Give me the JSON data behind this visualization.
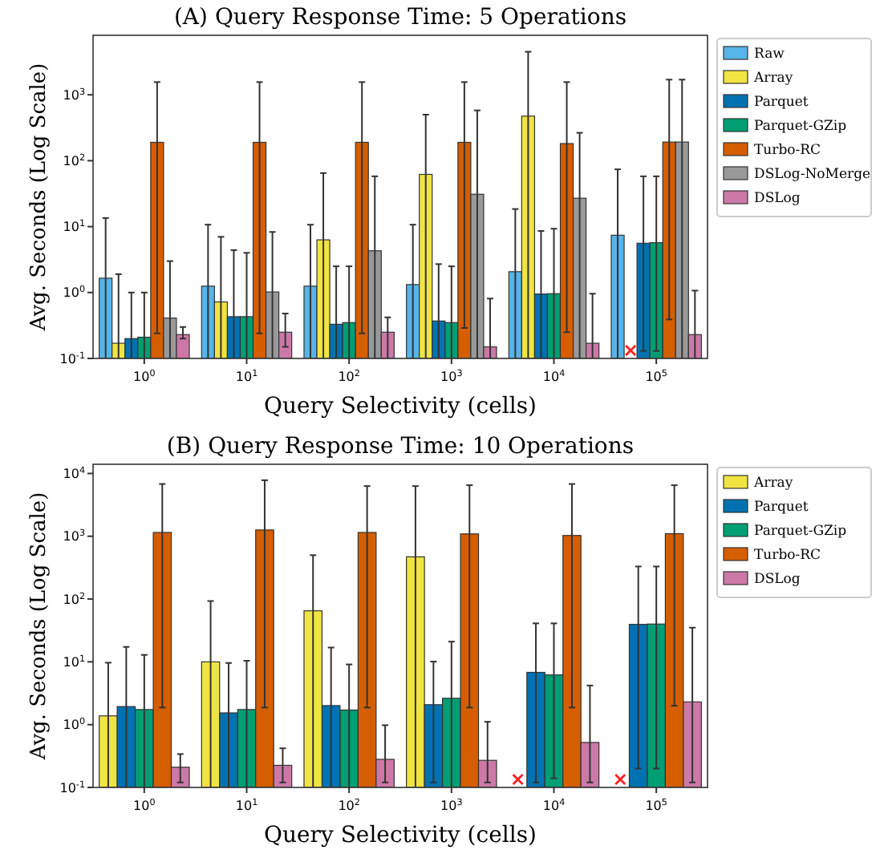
{
  "chart_data": [
    {
      "type": "bar",
      "title": "(A) Query Response Time: 5 Operations",
      "xlabel": "Query Selectivity (cells)",
      "ylabel": "Avg. Seconds (Log Scale)",
      "log": true,
      "legend": "right",
      "categories": [
        "10$^{0}$",
        "10$^{1}$",
        "10$^{2}$",
        "10$^{3}$",
        "10$^{4}$",
        "10$^{5}$"
      ],
      "ylim": [
        0.1,
        8000
      ],
      "yticks": [
        {
          "value": 0.1,
          "label": "10$^{-1}$"
        },
        {
          "value": 1,
          "label": "10$^{0}$"
        },
        {
          "value": 10,
          "label": "10$^{1}$"
        },
        {
          "value": 100,
          "label": "10$^{2}$"
        },
        {
          "value": 1000,
          "label": "10$^{3}$"
        }
      ],
      "series": [
        {
          "name": "Raw",
          "color": "#56b4e9",
          "values": [
            1.65,
            1.25,
            1.25,
            1.32,
            2.07,
            7.4
          ],
          "errors": [
            [
              0.1,
              13.5
            ],
            [
              0.1,
              10.7
            ],
            [
              0.1,
              10.7
            ],
            [
              0.1,
              10.7
            ],
            [
              0.1,
              18.5
            ],
            [
              0.1,
              74
            ]
          ]
        },
        {
          "name": "Array",
          "color": "#f0e442",
          "values": [
            0.17,
            0.72,
            6.3,
            62,
            475,
            null
          ],
          "errors": [
            [
              0.1,
              1.9
            ],
            [
              0.1,
              7
            ],
            [
              0.1,
              65
            ],
            [
              0.1,
              500
            ],
            [
              0.1,
              4500
            ],
            null
          ]
        },
        {
          "name": "Parquet",
          "color": "#0072b2",
          "values": [
            0.2,
            0.43,
            0.33,
            0.37,
            0.95,
            5.6
          ],
          "errors": [
            [
              0.1,
              1.0
            ],
            [
              0.1,
              4.4
            ],
            [
              0.1,
              2.5
            ],
            [
              0.1,
              2.7
            ],
            [
              0.1,
              8.6
            ],
            [
              0.13,
              58
            ]
          ]
        },
        {
          "name": "Parquet-GZip",
          "color": "#009e73",
          "values": [
            0.21,
            0.43,
            0.35,
            0.35,
            0.96,
            5.7
          ],
          "errors": [
            [
              0.1,
              1.0
            ],
            [
              0.1,
              4.0
            ],
            [
              0.1,
              2.5
            ],
            [
              0.1,
              2.5
            ],
            [
              0.1,
              9.3
            ],
            [
              0.13,
              58
            ]
          ]
        },
        {
          "name": "Turbo-RC",
          "color": "#d55e00",
          "values": [
            190,
            190,
            190,
            190,
            182,
            192
          ],
          "errors": [
            [
              0.24,
              1560
            ],
            [
              0.24,
              1560
            ],
            [
              0.24,
              1560
            ],
            [
              0.29,
              1560
            ],
            [
              0.25,
              1560
            ],
            [
              0.39,
              1700
            ]
          ]
        },
        {
          "name": "DSLog-NoMerge",
          "color": "#999999",
          "values": [
            0.41,
            1.02,
            4.3,
            31,
            27,
            192
          ],
          "errors": [
            [
              0.1,
              3.0
            ],
            [
              0.1,
              8.3
            ],
            [
              0.1,
              58
            ],
            [
              0.1,
              580
            ],
            [
              0.1,
              265
            ],
            [
              0.1,
              1700
            ]
          ]
        },
        {
          "name": "DSLog",
          "color": "#cc79a7",
          "values": [
            0.23,
            0.25,
            0.25,
            0.15,
            0.17,
            0.23
          ],
          "errors": [
            [
              0.2,
              0.3
            ],
            [
              0.15,
              0.48
            ],
            [
              0.1,
              0.42
            ],
            [
              0.1,
              0.81
            ],
            [
              0.1,
              0.96
            ],
            [
              0.1,
              1.07
            ]
          ]
        }
      ]
    },
    {
      "type": "bar",
      "title": "(B) Query Response Time: 10 Operations",
      "xlabel": "Query Selectivity (cells)",
      "ylabel": "Avg. Seconds (Log Scale)",
      "log": true,
      "legend": "right",
      "categories": [
        "10$^{0}$",
        "10$^{1}$",
        "10$^{2}$",
        "10$^{3}$",
        "10$^{4}$",
        "10$^{5}$"
      ],
      "ylim": [
        0.1,
        14000
      ],
      "yticks": [
        {
          "value": 0.1,
          "label": "10$^{-1}$"
        },
        {
          "value": 1,
          "label": "10$^{0}$"
        },
        {
          "value": 10,
          "label": "10$^{1}$"
        },
        {
          "value": 100,
          "label": "10$^{2}$"
        },
        {
          "value": 1000,
          "label": "10$^{3}$"
        },
        {
          "value": 10000,
          "label": "10$^{4}$"
        }
      ],
      "series": [
        {
          "name": "Array",
          "color": "#f0e442",
          "values": [
            1.38,
            10.0,
            65,
            470,
            null,
            null
          ],
          "errors": [
            [
              0.1,
              9.7
            ],
            [
              0.1,
              93
            ],
            [
              0.1,
              500
            ],
            [
              0.1,
              6300
            ],
            null,
            null
          ]
        },
        {
          "name": "Parquet",
          "color": "#0072b2",
          "values": [
            1.94,
            1.54,
            2.01,
            2.08,
            6.8,
            39.5
          ],
          "errors": [
            [
              0.1,
              17.3
            ],
            [
              0.1,
              9.6
            ],
            [
              0.1,
              16.9
            ],
            [
              0.12,
              10.1
            ],
            [
              0.12,
              41
            ],
            [
              0.2,
              330
            ]
          ]
        },
        {
          "name": "Parquet-GZip",
          "color": "#009e73",
          "values": [
            1.74,
            1.74,
            1.71,
            2.63,
            6.2,
            40
          ],
          "errors": [
            [
              0.1,
              12.9
            ],
            [
              0.1,
              10.4
            ],
            [
              0.1,
              9.1
            ],
            [
              0.1,
              21
            ],
            [
              0.14,
              41
            ],
            [
              0.2,
              330
            ]
          ]
        },
        {
          "name": "Turbo-RC",
          "color": "#d55e00",
          "values": [
            1150,
            1260,
            1150,
            1090,
            1030,
            1100
          ],
          "errors": [
            [
              1.87,
              6800
            ],
            [
              1.87,
              7800
            ],
            [
              1.87,
              6300
            ],
            [
              1.87,
              6500
            ],
            [
              1.87,
              6800
            ],
            [
              2.0,
              6500
            ]
          ]
        },
        {
          "name": "DSLog",
          "color": "#cc79a7",
          "values": [
            0.21,
            0.225,
            0.28,
            0.27,
            0.52,
            2.3
          ],
          "errors": [
            [
              0.12,
              0.34
            ],
            [
              0.12,
              0.42
            ],
            [
              0.12,
              0.98
            ],
            [
              0.12,
              1.11
            ],
            [
              0.12,
              4.2
            ],
            [
              0.12,
              35
            ]
          ]
        }
      ]
    }
  ]
}
